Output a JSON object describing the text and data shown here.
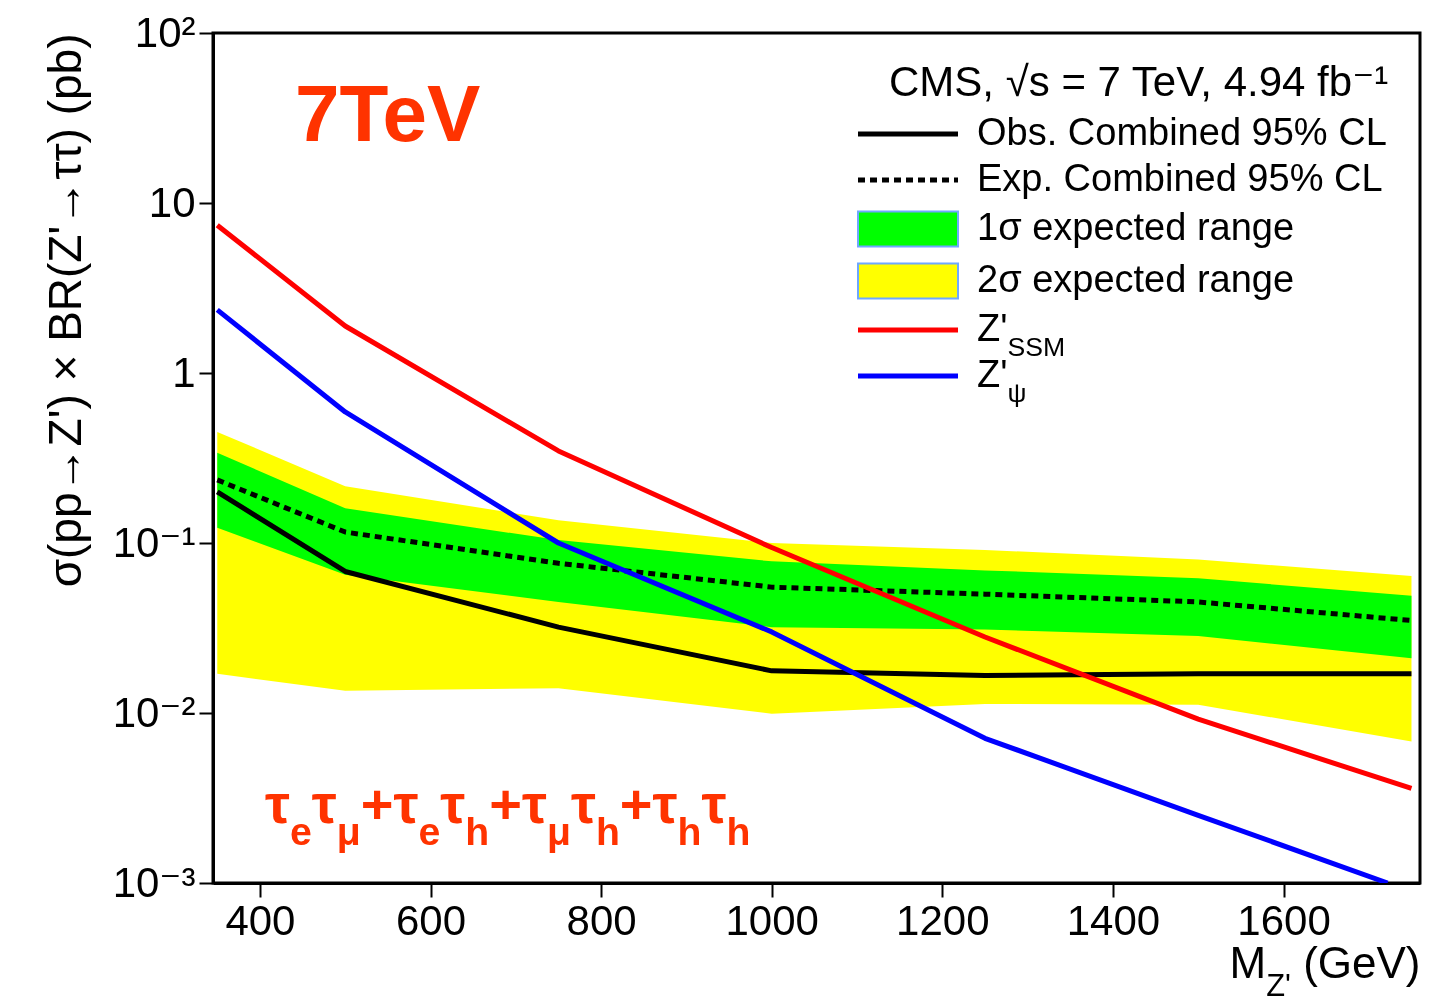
{
  "chart_data": {
    "type": "line",
    "xlabel": "M$_{Z'}$ (GeV)",
    "ylabel": "σ(pp→Z') × BR(Z'→ττ) (pb)",
    "legend_title": "CMS, √s = 7 TeV, 4.94 fb⁻¹",
    "legend": "top right",
    "log": true,
    "grid": false,
    "marker": "none",
    "xlim": [
      345,
      1760
    ],
    "xticks": [
      400,
      600,
      800,
      1000,
      1200,
      1400,
      1600
    ],
    "ylim": [
      0.001,
      100
    ],
    "yticks": [
      {
        "value": 0.001,
        "label": "10⁻³"
      },
      {
        "value": 0.01,
        "label": "10⁻²"
      },
      {
        "value": 0.1,
        "label": "10⁻¹"
      },
      1,
      10,
      {
        "value": 100,
        "label": "10²"
      }
    ],
    "annotations": [
      "7TeV",
      "τ$_{e}$τ$_{μ}$+τ$_{e}$τ$_{h}$+τ$_{μ}$τ$_{h}$+τ$_{h}$τ$_{h}$"
    ],
    "x": [
      350,
      500,
      750,
      1000,
      1250,
      1500,
      1750
    ],
    "series": [
      {
        "name": "Obs. Combined 95% CL",
        "color": "#000000",
        "line_style": "solid",
        "values": [
          0.2,
          0.068,
          0.032,
          0.0177,
          0.0166,
          0.017,
          0.017
        ]
      },
      {
        "name": "Exp. Combined 95% CL",
        "color": "#000000",
        "line_style": "dashed",
        "values": [
          0.235,
          0.116,
          0.076,
          0.055,
          0.05,
          0.045,
          0.035
        ]
      },
      {
        "name": "1σ expected range",
        "type": "area",
        "color": "#00ff00",
        "values": [
          null,
          null,
          null,
          null,
          null,
          null,
          null
        ],
        "lower": [
          0.123,
          0.065,
          0.045,
          0.032,
          0.031,
          0.0284,
          0.021
        ],
        "upper": [
          0.34,
          0.16,
          0.104,
          0.078,
          0.069,
          0.062,
          0.049
        ]
      },
      {
        "name": "2σ expected range",
        "type": "area",
        "color": "#ffff00",
        "values": [
          null,
          null,
          null,
          null,
          null,
          null,
          null
        ],
        "lower": [
          0.017,
          0.0135,
          0.014,
          0.0099,
          0.0113,
          0.0112,
          0.0068
        ],
        "upper": [
          0.45,
          0.216,
          0.136,
          0.1,
          0.091,
          0.08,
          0.064
        ]
      },
      {
        "name": "Z'$_{SSM}$",
        "color": "#ff0000",
        "line_style": "solid",
        "values": [
          7.4,
          1.89,
          0.348,
          0.094,
          0.028,
          0.0092,
          0.0036
        ]
      },
      {
        "name": "Z'$_{ψ}$",
        "color": "#0000ff",
        "line_style": "solid",
        "x": [
          350,
          500,
          750,
          1000,
          1250,
          1500,
          1722
        ],
        "values": [
          2.35,
          0.59,
          0.1,
          0.03,
          0.0071,
          0.0025,
          0.001
        ]
      }
    ]
  }
}
